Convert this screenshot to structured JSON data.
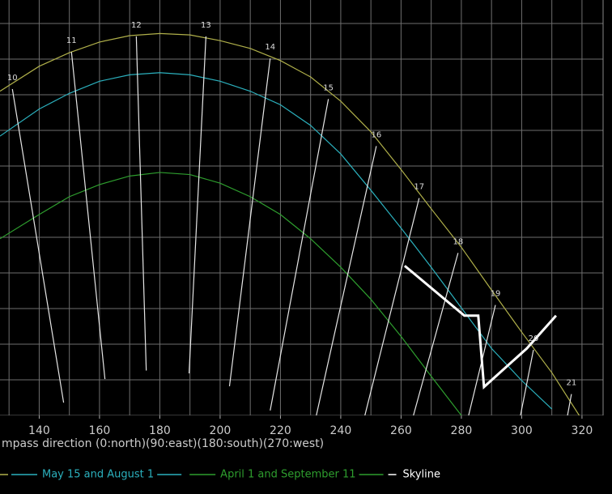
{
  "chart_data": {
    "type": "line",
    "x_label": "mpass direction (0:north)(90:east)(180:south)(270:west)",
    "xlim": [
      127,
      327
    ],
    "ylim": [
      0,
      58.3
    ],
    "xticks": [
      140,
      160,
      180,
      200,
      220,
      240,
      260,
      280,
      300,
      320
    ],
    "xgrid": [
      130,
      140,
      150,
      160,
      170,
      180,
      190,
      200,
      210,
      220,
      230,
      240,
      250,
      260,
      270,
      280,
      290,
      300,
      310,
      320
    ],
    "ygrid": [
      0,
      5,
      10,
      15,
      20,
      25,
      30,
      35,
      40,
      45,
      50,
      55
    ],
    "grid": true,
    "x": [
      127,
      140,
      150,
      160,
      170,
      180,
      190,
      200,
      210,
      220,
      230,
      240,
      250,
      260,
      270,
      280,
      290,
      300,
      310,
      320
    ],
    "series": [
      {
        "color": "#b0b04a",
        "values": [
          45.5,
          49.0,
          50.9,
          52.4,
          53.3,
          53.6,
          53.4,
          52.6,
          51.5,
          49.8,
          47.5,
          44.1,
          39.8,
          34.5,
          29.0,
          23.6,
          17.6,
          11.7,
          6.0,
          -0.6
        ]
      },
      {
        "name": "May 15 and August 1",
        "color": "#2bb0bd",
        "values": [
          39.2,
          43.0,
          45.2,
          46.9,
          47.8,
          48.1,
          47.8,
          46.9,
          45.5,
          43.6,
          40.7,
          36.7,
          31.6,
          26.3,
          20.8,
          15.1,
          9.4,
          4.9,
          0.9,
          null
        ]
      },
      {
        "name": "April 1 and September 11",
        "color": "#2e9e2e",
        "values": [
          24.8,
          28.2,
          30.7,
          32.4,
          33.6,
          34.1,
          33.8,
          32.6,
          30.7,
          28.2,
          24.8,
          20.8,
          16.3,
          11.1,
          5.5,
          0,
          null,
          null,
          null,
          null
        ]
      }
    ],
    "hour_lines": [
      {
        "label": "10",
        "x": [
          131.1,
          148.1
        ],
        "y": [
          45.8,
          1.8
        ]
      },
      {
        "label": "11",
        "x": [
          150.7,
          161.8
        ],
        "y": [
          51.0,
          5.1
        ]
      },
      {
        "label": "12",
        "x": [
          172.2,
          175.5
        ],
        "y": [
          53.2,
          6.3
        ]
      },
      {
        "label": "13",
        "x": [
          195.3,
          189.7
        ],
        "y": [
          53.2,
          5.9
        ]
      },
      {
        "label": "14",
        "x": [
          216.6,
          203.1
        ],
        "y": [
          50.1,
          4.1
        ]
      },
      {
        "label": "15",
        "x": [
          235.9,
          216.6
        ],
        "y": [
          44.4,
          0.7
        ]
      },
      {
        "label": "16",
        "x": [
          251.8,
          231.9
        ],
        "y": [
          37.8,
          0
        ]
      },
      {
        "label": "17",
        "x": [
          266.0,
          248.0
        ],
        "y": [
          30.5,
          0
        ]
      },
      {
        "label": "18",
        "x": [
          278.9,
          264.1
        ],
        "y": [
          22.8,
          0
        ]
      },
      {
        "label": "19",
        "x": [
          291.3,
          282.4
        ],
        "y": [
          15.5,
          0
        ]
      },
      {
        "label": "20",
        "x": [
          303.9,
          299.6
        ],
        "y": [
          9.2,
          0
        ]
      },
      {
        "label": "21",
        "x": [
          316.5,
          315.2
        ],
        "y": [
          3.0,
          0
        ]
      }
    ],
    "skyline": {
      "name": "Skyline",
      "color": "#ffffff",
      "x": [
        261.2,
        281.0,
        285.6,
        287.5,
        301.7,
        311.4
      ],
      "y": [
        21.0,
        14.0,
        14.0,
        4.0,
        9.4,
        14.0
      ]
    }
  }
}
